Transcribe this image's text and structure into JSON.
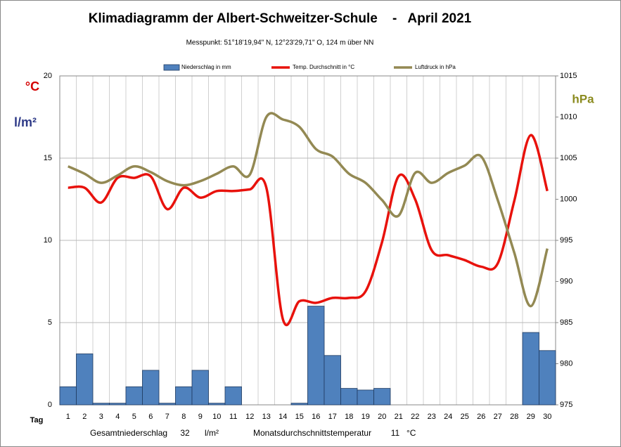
{
  "chart_data": {
    "type": "combo",
    "title": "Klimadiagramm der Albert-Schweitzer-Schule    -   April 2021",
    "subtitle": "Messpunkt:  51°18'19,94\" N,  12°23'29,71\" O,  124 m über NN",
    "y_label_temp": "°C",
    "y_label_precip": "l/m²",
    "y2_label": "hPa",
    "x_label": "Tag",
    "categories": [
      "1",
      "2",
      "3",
      "4",
      "5",
      "6",
      "7",
      "8",
      "9",
      "10",
      "11",
      "12",
      "13",
      "14",
      "15",
      "16",
      "17",
      "18",
      "19",
      "20",
      "21",
      "22",
      "23",
      "24",
      "25",
      "26",
      "27",
      "28",
      "29",
      "30"
    ],
    "series": [
      {
        "name": "Niederschlag in mm",
        "type": "bar",
        "color": "#4f81bd",
        "values": [
          1.1,
          3.1,
          0.1,
          0.1,
          1.1,
          2.1,
          0.1,
          1.1,
          2.1,
          0.1,
          1.1,
          0,
          0,
          0,
          0.1,
          6.0,
          3.0,
          1.0,
          0.9,
          1.0,
          0,
          0,
          0,
          0,
          0,
          0,
          0,
          0,
          4.4,
          3.3
        ]
      },
      {
        "name": "Temp. Durchschnitt in °C",
        "type": "line",
        "color": "#e8120c",
        "values": [
          13.2,
          13.2,
          12.3,
          13.8,
          13.8,
          13.9,
          11.9,
          13.2,
          12.6,
          13.0,
          13.0,
          13.1,
          13.2,
          5.2,
          6.3,
          6.2,
          6.5,
          6.5,
          6.9,
          9.9,
          13.9,
          12.5,
          9.4,
          9.1,
          8.8,
          8.4,
          8.6,
          12.4,
          16.4,
          13.0
        ]
      },
      {
        "name": "Luftdruck in hPa",
        "type": "line",
        "axis": "y2",
        "color": "#938953",
        "values": [
          1004.0,
          1003.1,
          1002.0,
          1002.9,
          1004.0,
          1003.3,
          1002.2,
          1001.7,
          1002.2,
          1003.1,
          1004.0,
          1003.0,
          1010.0,
          1009.7,
          1008.8,
          1006.1,
          1005.2,
          1003.1,
          1002.0,
          999.9,
          998.0,
          1003.2,
          1002.0,
          1003.2,
          1004.1,
          1005.2,
          999.9,
          993.5,
          987.0,
          994.0
        ]
      }
    ],
    "ylim": [
      0,
      20
    ],
    "yticks": [
      0,
      5,
      10,
      15,
      20
    ],
    "y2lim": [
      975,
      1015
    ],
    "y2ticks": [
      975,
      980,
      985,
      990,
      995,
      1000,
      1005,
      1010,
      1015
    ],
    "grid": true,
    "legend": "top",
    "summary": {
      "precip_label": "Gesamtniederschlag",
      "precip_value": 32,
      "precip_unit": "l/m²",
      "temp_label": "Monatsdurchschnittstemperatur",
      "temp_value": 11,
      "temp_unit": "°C"
    }
  }
}
